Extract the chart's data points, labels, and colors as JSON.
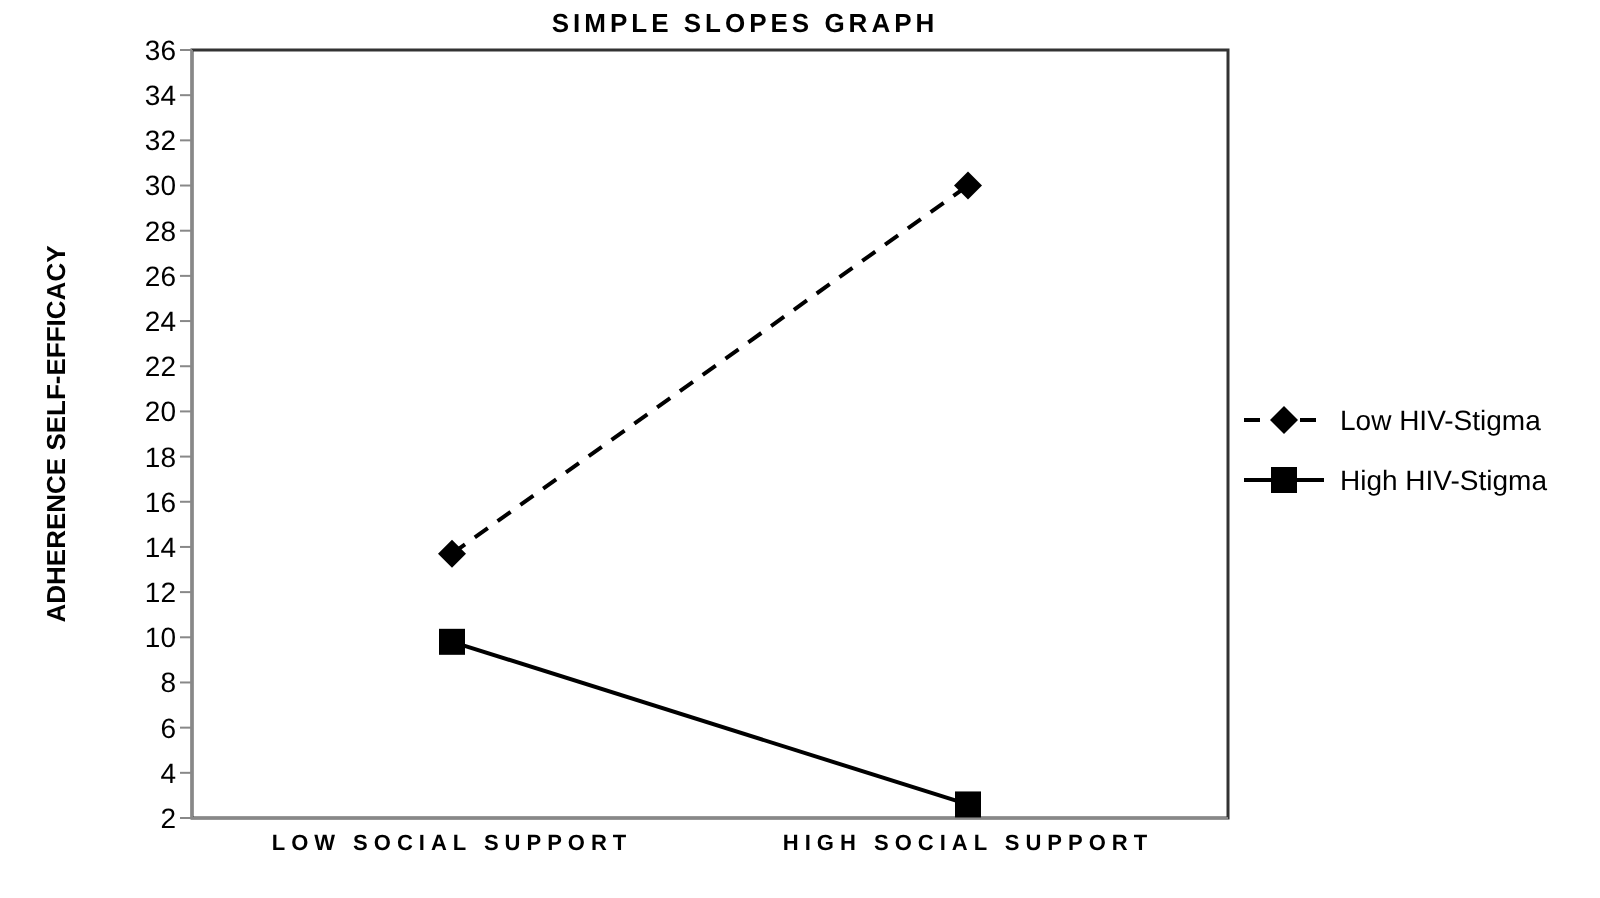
{
  "chart_data": {
    "type": "line",
    "title": "SIMPLE SLOPES GRAPH",
    "ylabel": "ADHERENCE SELF-EFFICACY",
    "categories": [
      "LOW SOCIAL SUPPORT",
      "HIGH SOCIAL SUPPORT"
    ],
    "ylim": [
      2,
      36
    ],
    "yticks": [
      2,
      4,
      6,
      8,
      10,
      12,
      14,
      16,
      18,
      20,
      22,
      24,
      26,
      28,
      30,
      32,
      34,
      36
    ],
    "grid": false,
    "legend": "right",
    "series": [
      {
        "name": "Low HIV-Stigma",
        "color": "#000000",
        "values": [
          13.7,
          30.0
        ],
        "marker": "diamond",
        "line_style": "dashed"
      },
      {
        "name": "High HIV-Stigma",
        "color": "#000000",
        "values": [
          9.8,
          2.6
        ],
        "marker": "square",
        "line_style": "solid"
      }
    ]
  }
}
